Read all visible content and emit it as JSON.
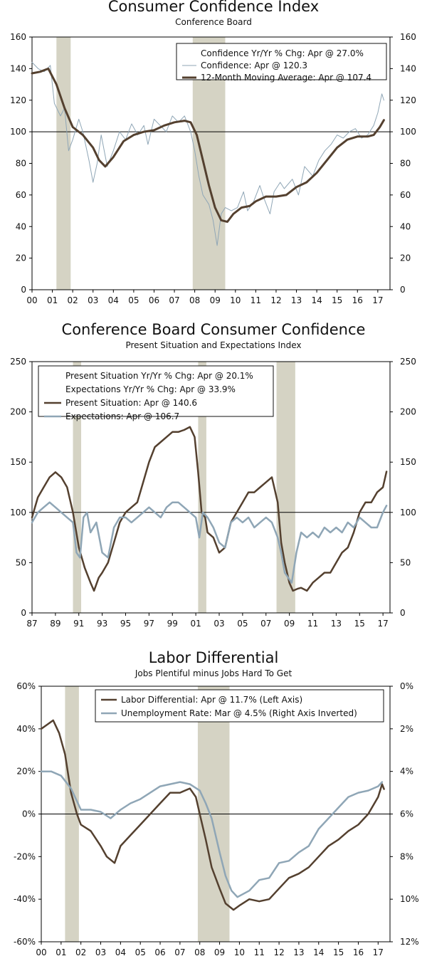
{
  "colors": {
    "recession": "#d5d3c4",
    "dark_line": "#54402f",
    "blue_line": "#8fa6b6",
    "axis": "#000000",
    "legend_border": "#111111"
  },
  "chart_data": [
    {
      "type": "line",
      "title": "Consumer Confidence Index",
      "subtitle": "Conference Board",
      "xlim": [
        2000,
        2017.6
      ],
      "ylim": [
        0,
        160
      ],
      "y_ticks_left": [
        "0",
        "20",
        "40",
        "60",
        "80",
        "100",
        "120",
        "140",
        "160"
      ],
      "y_ticks_right": [
        "0",
        "20",
        "40",
        "60",
        "80",
        "100",
        "120",
        "140",
        "160"
      ],
      "x_ticks": [
        "00",
        "01",
        "02",
        "03",
        "04",
        "05",
        "06",
        "07",
        "08",
        "09",
        "10",
        "11",
        "12",
        "13",
        "14",
        "15",
        "16",
        "17"
      ],
      "reference_line": 100,
      "recessions": [
        [
          2001.2,
          2001.9
        ],
        [
          2007.9,
          2009.5
        ]
      ],
      "legend": [
        "Confidence Yr/Yr % Chg: Apr @ 27.0%",
        "Confidence: Apr @ 120.3",
        "12-Month Moving Average: Apr @ 107.4"
      ],
      "series": [
        {
          "name": "Confidence",
          "style": "thin-blue",
          "x": [
            2000.0,
            2000.3,
            2000.6,
            2000.9,
            2001.1,
            2001.4,
            2001.6,
            2001.8,
            2002.0,
            2002.3,
            2002.5,
            2002.8,
            2003.0,
            2003.2,
            2003.4,
            2003.7,
            2004.0,
            2004.3,
            2004.6,
            2004.9,
            2005.2,
            2005.5,
            2005.7,
            2006.0,
            2006.3,
            2006.6,
            2006.9,
            2007.2,
            2007.5,
            2007.8,
            2008.0,
            2008.2,
            2008.4,
            2008.7,
            2008.9,
            2009.1,
            2009.3,
            2009.5,
            2009.8,
            2010.1,
            2010.4,
            2010.6,
            2010.9,
            2011.2,
            2011.4,
            2011.7,
            2011.9,
            2012.2,
            2012.4,
            2012.8,
            2013.1,
            2013.4,
            2013.8,
            2014.1,
            2014.4,
            2014.7,
            2015.0,
            2015.3,
            2015.6,
            2015.9,
            2016.2,
            2016.5,
            2016.8,
            2017.0,
            2017.2,
            2017.3
          ],
          "y": [
            144,
            140,
            138,
            142,
            118,
            110,
            115,
            88,
            95,
            108,
            100,
            82,
            68,
            80,
            98,
            78,
            88,
            100,
            95,
            105,
            98,
            104,
            92,
            108,
            104,
            100,
            110,
            106,
            110,
            100,
            88,
            72,
            60,
            54,
            44,
            28,
            48,
            52,
            50,
            52,
            62,
            50,
            56,
            66,
            58,
            48,
            62,
            68,
            64,
            70,
            60,
            78,
            72,
            82,
            88,
            92,
            98,
            96,
            100,
            102,
            96,
            98,
            104,
            112,
            124,
            120
          ]
        },
        {
          "name": "12-Month Moving Average",
          "style": "thick-dark",
          "x": [
            2000.0,
            2000.4,
            2000.8,
            2001.2,
            2001.6,
            2002.0,
            2002.5,
            2003.0,
            2003.3,
            2003.6,
            2004.0,
            2004.5,
            2005.0,
            2005.5,
            2006.0,
            2006.5,
            2007.0,
            2007.5,
            2007.8,
            2008.1,
            2008.4,
            2008.7,
            2009.0,
            2009.3,
            2009.6,
            2009.9,
            2010.3,
            2010.7,
            2011.0,
            2011.5,
            2012.0,
            2012.5,
            2013.0,
            2013.5,
            2014.0,
            2014.5,
            2015.0,
            2015.5,
            2016.0,
            2016.5,
            2016.8,
            2017.1,
            2017.3
          ],
          "y": [
            137,
            138,
            140,
            130,
            115,
            103,
            98,
            90,
            82,
            78,
            84,
            94,
            98,
            100,
            101,
            104,
            106,
            107,
            106,
            98,
            82,
            66,
            52,
            44,
            43,
            48,
            52,
            53,
            56,
            59,
            59,
            60,
            65,
            68,
            74,
            82,
            90,
            95,
            97,
            97,
            98,
            103,
            107.4
          ]
        }
      ]
    },
    {
      "type": "line",
      "title": "Conference Board Consumer Confidence",
      "subtitle": "Present Situation and Expectations Index",
      "xlim": [
        1987,
        2017.6
      ],
      "ylim": [
        0,
        250
      ],
      "y_ticks_left": [
        "0",
        "50",
        "100",
        "150",
        "200",
        "250"
      ],
      "y_ticks_right": [
        "0",
        "50",
        "100",
        "150",
        "200",
        "250"
      ],
      "x_ticks": [
        "87",
        "89",
        "91",
        "93",
        "95",
        "97",
        "99",
        "01",
        "03",
        "05",
        "07",
        "09",
        "11",
        "13",
        "15",
        "17"
      ],
      "reference_line": 100,
      "recessions": [
        [
          1990.5,
          1991.2
        ],
        [
          2001.2,
          2001.9
        ],
        [
          2007.9,
          2009.5
        ]
      ],
      "legend": [
        "Present Situation Yr/Yr % Chg: Apr @ 20.1%",
        "Expectations Yr/Yr % Chg: Apr @ 33.9%",
        "Present Situation: Apr @ 140.6",
        "Expectations: Apr @ 106.7"
      ],
      "series": [
        {
          "name": "Present Situation",
          "style": "dark",
          "x": [
            1987.0,
            1987.5,
            1988.0,
            1988.5,
            1989.0,
            1989.5,
            1990.0,
            1990.5,
            1991.0,
            1991.5,
            1992.0,
            1992.3,
            1992.7,
            1993.0,
            1993.5,
            1994.0,
            1994.5,
            1995.0,
            1995.5,
            1996.0,
            1996.5,
            1997.0,
            1997.5,
            1998.0,
            1998.5,
            1999.0,
            1999.5,
            2000.0,
            2000.5,
            2000.9,
            2001.2,
            2001.5,
            2001.8,
            2002.0,
            2002.5,
            2003.0,
            2003.5,
            2004.0,
            2004.5,
            2005.0,
            2005.5,
            2006.0,
            2006.5,
            2007.0,
            2007.5,
            2008.0,
            2008.3,
            2008.6,
            2009.0,
            2009.3,
            2009.7,
            2010.0,
            2010.5,
            2011.0,
            2011.5,
            2012.0,
            2012.5,
            2013.0,
            2013.5,
            2014.0,
            2014.5,
            2015.0,
            2015.5,
            2016.0,
            2016.5,
            2017.0,
            2017.3
          ],
          "y": [
            95,
            115,
            125,
            135,
            140,
            135,
            125,
            100,
            65,
            45,
            30,
            22,
            35,
            40,
            50,
            70,
            90,
            100,
            105,
            110,
            130,
            150,
            165,
            170,
            175,
            180,
            180,
            182,
            185,
            175,
            140,
            100,
            95,
            80,
            75,
            60,
            65,
            90,
            100,
            110,
            120,
            120,
            125,
            130,
            135,
            110,
            70,
            50,
            30,
            22,
            24,
            25,
            22,
            30,
            35,
            40,
            40,
            50,
            60,
            65,
            80,
            100,
            110,
            110,
            120,
            125,
            140.6
          ]
        },
        {
          "name": "Expectations",
          "style": "blue",
          "x": [
            1987.0,
            1987.5,
            1988.0,
            1988.5,
            1989.0,
            1989.5,
            1990.0,
            1990.5,
            1990.8,
            1991.1,
            1991.4,
            1991.7,
            1992.0,
            1992.5,
            1993.0,
            1993.5,
            1994.0,
            1994.5,
            1995.0,
            1995.5,
            1996.0,
            1996.5,
            1997.0,
            1997.5,
            1998.0,
            1998.5,
            1999.0,
            1999.5,
            2000.0,
            2000.5,
            2001.0,
            2001.3,
            2001.6,
            2002.0,
            2002.5,
            2003.0,
            2003.5,
            2004.0,
            2004.5,
            2005.0,
            2005.5,
            2006.0,
            2006.5,
            2007.0,
            2007.5,
            2008.0,
            2008.3,
            2008.6,
            2008.9,
            2009.2,
            2009.6,
            2010.0,
            2010.5,
            2011.0,
            2011.5,
            2012.0,
            2012.5,
            2013.0,
            2013.5,
            2014.0,
            2014.5,
            2015.0,
            2015.5,
            2016.0,
            2016.5,
            2017.0,
            2017.3
          ],
          "y": [
            90,
            100,
            105,
            110,
            105,
            100,
            95,
            90,
            60,
            55,
            95,
            100,
            80,
            90,
            60,
            55,
            85,
            95,
            95,
            90,
            95,
            100,
            105,
            100,
            95,
            105,
            110,
            110,
            105,
            100,
            95,
            75,
            100,
            95,
            85,
            70,
            65,
            90,
            95,
            90,
            95,
            85,
            90,
            95,
            90,
            75,
            60,
            40,
            35,
            30,
            60,
            80,
            75,
            80,
            75,
            85,
            80,
            85,
            80,
            90,
            85,
            95,
            90,
            85,
            85,
            100,
            106.7
          ]
        }
      ]
    },
    {
      "type": "line",
      "title": "Labor Differential",
      "subtitle": "Jobs Plentiful minus Jobs Hard To Get",
      "xlim": [
        2000,
        2017.6
      ],
      "ylim": [
        -60,
        60
      ],
      "y_ticks_left": [
        "-60%",
        "-40%",
        "-20%",
        "0%",
        "20%",
        "40%",
        "60%"
      ],
      "y_ticks_right": [
        "12%",
        "10%",
        "8%",
        "6%",
        "4%",
        "2%",
        "0%"
      ],
      "x_ticks": [
        "00",
        "01",
        "02",
        "03",
        "04",
        "05",
        "06",
        "07",
        "08",
        "09",
        "10",
        "11",
        "12",
        "13",
        "14",
        "15",
        "16",
        "17"
      ],
      "reference_line": 0,
      "recessions": [
        [
          2001.2,
          2001.9
        ],
        [
          2007.9,
          2009.5
        ]
      ],
      "legend": [
        "Labor Differential: Apr @ 11.7% (Left Axis)",
        "Unemployment Rate: Mar @ 4.5% (Right Axis Inverted)"
      ],
      "series": [
        {
          "name": "Labor Differential",
          "axis": "left",
          "style": "dark",
          "x": [
            2000.0,
            2000.3,
            2000.6,
            2000.9,
            2001.2,
            2001.5,
            2001.8,
            2002.0,
            2002.5,
            2003.0,
            2003.3,
            2003.7,
            2004.0,
            2004.5,
            2005.0,
            2005.5,
            2006.0,
            2006.5,
            2007.0,
            2007.5,
            2007.8,
            2008.0,
            2008.3,
            2008.6,
            2009.0,
            2009.3,
            2009.7,
            2010.0,
            2010.5,
            2011.0,
            2011.5,
            2012.0,
            2012.5,
            2013.0,
            2013.5,
            2014.0,
            2014.5,
            2015.0,
            2015.5,
            2016.0,
            2016.5,
            2017.0,
            2017.2,
            2017.3
          ],
          "y": [
            40,
            42,
            44,
            38,
            28,
            10,
            0,
            -5,
            -8,
            -15,
            -20,
            -23,
            -15,
            -10,
            -5,
            0,
            5,
            10,
            10,
            12,
            8,
            0,
            -12,
            -25,
            -35,
            -42,
            -45,
            -43,
            -40,
            -41,
            -40,
            -35,
            -30,
            -28,
            -25,
            -20,
            -15,
            -12,
            -8,
            -5,
            0,
            8,
            14,
            11.7
          ]
        },
        {
          "name": "Unemployment Rate",
          "axis": "right_inverted",
          "style": "blue",
          "x": [
            2000.0,
            2000.5,
            2001.0,
            2001.5,
            2002.0,
            2002.5,
            2003.0,
            2003.5,
            2004.0,
            2004.5,
            2005.0,
            2005.5,
            2006.0,
            2006.5,
            2007.0,
            2007.5,
            2008.0,
            2008.3,
            2008.6,
            2009.0,
            2009.3,
            2009.6,
            2009.9,
            2010.5,
            2011.0,
            2011.5,
            2012.0,
            2012.5,
            2013.0,
            2013.5,
            2014.0,
            2014.5,
            2015.0,
            2015.5,
            2016.0,
            2016.5,
            2017.0,
            2017.2
          ],
          "y": [
            4.0,
            4.0,
            4.2,
            4.8,
            5.8,
            5.8,
            5.9,
            6.2,
            5.8,
            5.5,
            5.3,
            5.0,
            4.7,
            4.6,
            4.5,
            4.6,
            4.9,
            5.5,
            6.2,
            7.8,
            8.9,
            9.6,
            9.9,
            9.6,
            9.1,
            9.0,
            8.3,
            8.2,
            7.8,
            7.5,
            6.7,
            6.2,
            5.7,
            5.2,
            5.0,
            4.9,
            4.7,
            4.5
          ]
        }
      ]
    }
  ]
}
